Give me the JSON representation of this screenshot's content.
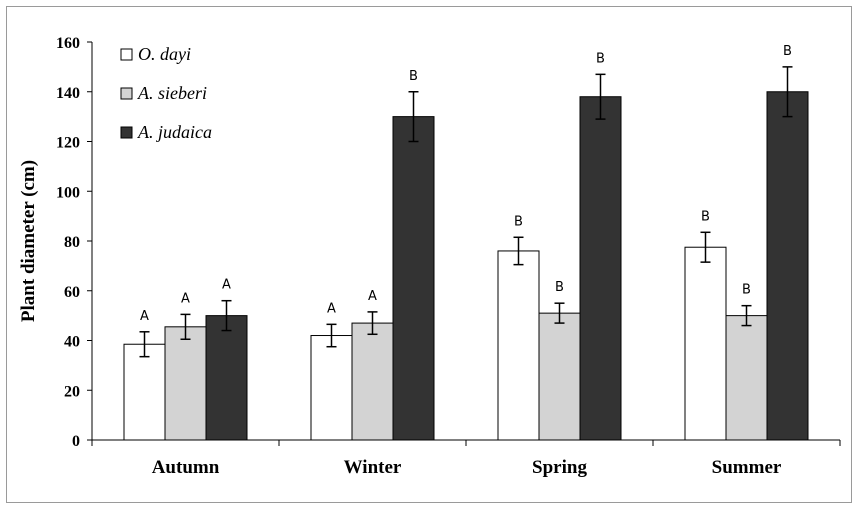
{
  "chart_data": {
    "type": "bar",
    "ylabel": "Plant diameter (cm)",
    "xlabel": "",
    "ylim": [
      0,
      160
    ],
    "yticks": [
      "0",
      "20",
      "40",
      "60",
      "80",
      "100",
      "120",
      "140",
      "160"
    ],
    "categories": [
      "Autumn",
      "Winter",
      "Spring",
      "Summer"
    ],
    "legend_position": "top-left",
    "grid": false,
    "series": [
      {
        "name": "O. dayi",
        "color": "#ffffff",
        "values": [
          38.5,
          42,
          76,
          77.5
        ],
        "errors": [
          5,
          4.5,
          5.5,
          6
        ],
        "letters": [
          "A",
          "A",
          "B",
          "B"
        ]
      },
      {
        "name": "A. sieberi",
        "color": "#d3d3d3",
        "values": [
          45.5,
          47,
          51,
          50
        ],
        "errors": [
          5,
          4.5,
          4,
          4
        ],
        "letters": [
          "A",
          "A",
          "B",
          "B"
        ]
      },
      {
        "name": "A. judaica",
        "color": "#333333",
        "values": [
          50,
          130,
          138,
          140
        ],
        "errors": [
          6,
          10,
          9,
          10
        ],
        "letters": [
          "A",
          "B",
          "B",
          "B"
        ]
      }
    ]
  }
}
